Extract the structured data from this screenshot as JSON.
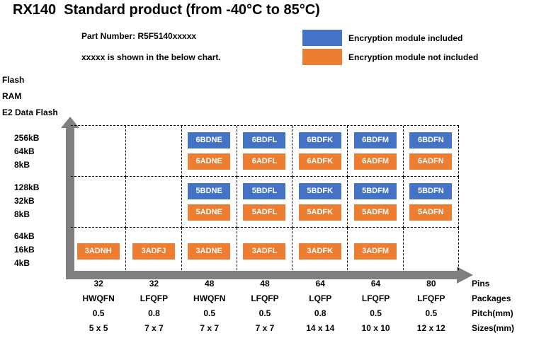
{
  "header": {
    "part_number": "Part Number: R5F5140xxxxx",
    "note": "xxxxx is shown in the below chart."
  },
  "legend": [
    {
      "label": "Encryption module included",
      "color": "#4472C4"
    },
    {
      "label": "Encryption module not included",
      "color": "#ED7D31"
    }
  ],
  "colors": {
    "included": "#4472C4",
    "not_included": "#ED7D31",
    "axis_gray": "#7F7F7F"
  },
  "chart_data": {
    "type": "table",
    "title": "RX140  Standard product (from -40°C to 85°C)",
    "y_axis_title_lines": [
      "Flash",
      "RAM",
      "E2 Data Flash"
    ],
    "x_axis_rows": [
      {
        "label": "Pins",
        "values": [
          "32",
          "32",
          "48",
          "48",
          "64",
          "64",
          "80"
        ]
      },
      {
        "label": "Packages",
        "values": [
          "HWQFN",
          "LFQFP",
          "HWQFN",
          "LFQFP",
          "LQFP",
          "LFQFP",
          "LFQFP"
        ]
      },
      {
        "label": "Pitch(mm)",
        "values": [
          "0.5",
          "0.8",
          "0.5",
          "0.5",
          "0.8",
          "0.5",
          "0.5"
        ]
      },
      {
        "label": "Sizes(mm)",
        "values": [
          "5 x 5",
          "7 x 7",
          "7 x 7",
          "7 x 7",
          "14 x 14",
          "10 x 10",
          "12 x 12"
        ]
      }
    ],
    "rows": [
      {
        "flash": "256kB",
        "ram": "64kB",
        "e2_data_flash": "8kB",
        "cells": [
          {
            "included": "",
            "not_included": ""
          },
          {
            "included": "",
            "not_included": ""
          },
          {
            "included": "6BDNE",
            "not_included": "6ADNE"
          },
          {
            "included": "6BDFL",
            "not_included": "6ADFL"
          },
          {
            "included": "6BDFK",
            "not_included": "6ADFK"
          },
          {
            "included": "6BDFM",
            "not_included": "6ADFM"
          },
          {
            "included": "6BDFN",
            "not_included": "6ADFN"
          }
        ]
      },
      {
        "flash": "128kB",
        "ram": "32kB",
        "e2_data_flash": "8kB",
        "cells": [
          {
            "included": "",
            "not_included": ""
          },
          {
            "included": "",
            "not_included": ""
          },
          {
            "included": "5BDNE",
            "not_included": "5ADNE"
          },
          {
            "included": "5BDFL",
            "not_included": "5ADFL"
          },
          {
            "included": "5BDFK",
            "not_included": "5ADFK"
          },
          {
            "included": "5BDFM",
            "not_included": "5ADFM"
          },
          {
            "included": "5BDFN",
            "not_included": "5ADFN"
          }
        ]
      },
      {
        "flash": "64kB",
        "ram": "16kB",
        "e2_data_flash": "4kB",
        "cells": [
          {
            "included": "",
            "not_included": "3ADNH"
          },
          {
            "included": "",
            "not_included": "3ADFJ"
          },
          {
            "included": "",
            "not_included": "3ADNE"
          },
          {
            "included": "",
            "not_included": "3ADFL"
          },
          {
            "included": "",
            "not_included": "3ADFK"
          },
          {
            "included": "",
            "not_included": "3ADFM"
          },
          {
            "included": "",
            "not_included": ""
          }
        ]
      }
    ]
  }
}
